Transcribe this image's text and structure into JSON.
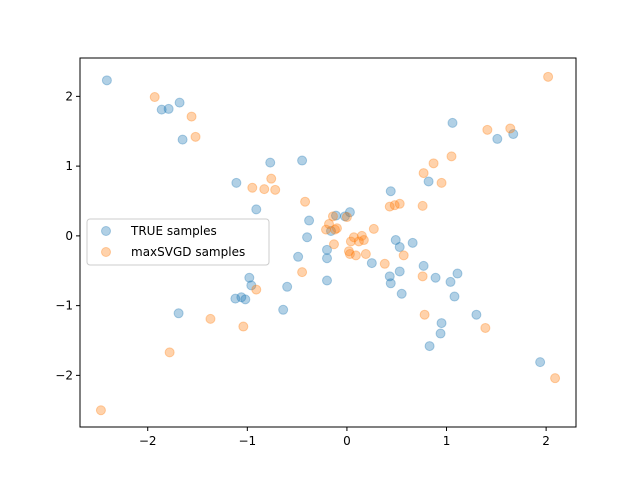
{
  "chart_data": {
    "type": "scatter",
    "title": "",
    "xlabel": "",
    "ylabel": "",
    "xlim": [
      -2.68,
      2.3
    ],
    "ylim": [
      -2.74,
      2.55
    ],
    "xticks": [
      -2,
      -1,
      0,
      1,
      2
    ],
    "yticks": [
      -2,
      -1,
      0,
      1,
      2
    ],
    "grid": false,
    "legend_position": "center-left",
    "series": [
      {
        "name": "TRUE samples",
        "color": "#1f77b4",
        "points": [
          [
            -2.41,
            2.23
          ],
          [
            -1.86,
            1.81
          ],
          [
            -1.79,
            1.82
          ],
          [
            -1.68,
            1.91
          ],
          [
            -1.65,
            1.38
          ],
          [
            -1.11,
            0.76
          ],
          [
            -0.77,
            1.05
          ],
          [
            -0.45,
            1.08
          ],
          [
            -0.91,
            0.38
          ],
          [
            -0.38,
            0.22
          ],
          [
            -0.4,
            -0.02
          ],
          [
            -0.49,
            -0.3
          ],
          [
            -0.6,
            -0.73
          ],
          [
            -0.64,
            -1.06
          ],
          [
            -0.2,
            -0.2
          ],
          [
            -0.2,
            -0.32
          ],
          [
            -0.16,
            0.07
          ],
          [
            -0.11,
            0.29
          ],
          [
            -0.02,
            0.28
          ],
          [
            0.03,
            0.34
          ],
          [
            -0.2,
            -0.64
          ],
          [
            -0.98,
            -0.6
          ],
          [
            -0.96,
            -0.71
          ],
          [
            -1.12,
            -0.9
          ],
          [
            -1.06,
            -0.88
          ],
          [
            -1.02,
            -0.91
          ],
          [
            -1.69,
            -1.11
          ],
          [
            0.25,
            -0.39
          ],
          [
            0.44,
            0.64
          ],
          [
            0.49,
            -0.06
          ],
          [
            0.53,
            -0.16
          ],
          [
            0.66,
            -0.1
          ],
          [
            0.43,
            -0.58
          ],
          [
            0.44,
            -0.68
          ],
          [
            0.53,
            -0.51
          ],
          [
            0.55,
            -0.83
          ],
          [
            0.77,
            -0.43
          ],
          [
            0.82,
            0.78
          ],
          [
            0.89,
            -0.6
          ],
          [
            0.95,
            -1.25
          ],
          [
            0.94,
            -1.4
          ],
          [
            0.83,
            -1.58
          ],
          [
            1.04,
            -0.66
          ],
          [
            1.06,
            1.62
          ],
          [
            1.08,
            -0.87
          ],
          [
            1.11,
            -0.54
          ],
          [
            1.3,
            -1.13
          ],
          [
            1.51,
            1.39
          ],
          [
            1.67,
            1.46
          ],
          [
            1.94,
            -1.81
          ]
        ]
      },
      {
        "name": "maxSVGD samples",
        "color": "#ff7f0e",
        "points": [
          [
            -1.93,
            1.99
          ],
          [
            -1.56,
            1.71
          ],
          [
            -1.52,
            1.42
          ],
          [
            -0.95,
            0.69
          ],
          [
            -0.83,
            0.67
          ],
          [
            -0.76,
            0.82
          ],
          [
            -0.72,
            0.66
          ],
          [
            -0.42,
            0.49
          ],
          [
            -0.45,
            -0.52
          ],
          [
            -0.91,
            -0.77
          ],
          [
            -1.37,
            -1.19
          ],
          [
            -1.04,
            -1.3
          ],
          [
            -1.78,
            -1.67
          ],
          [
            -2.47,
            -2.5
          ],
          [
            -0.21,
            0.09
          ],
          [
            -0.18,
            0.17
          ],
          [
            -0.14,
            0.28
          ],
          [
            -0.12,
            0.09
          ],
          [
            -0.13,
            -0.12
          ],
          [
            -0.1,
            0.11
          ],
          [
            0.0,
            0.27
          ],
          [
            0.02,
            -0.22
          ],
          [
            0.03,
            -0.26
          ],
          [
            0.04,
            -0.08
          ],
          [
            0.07,
            -0.02
          ],
          [
            0.09,
            -0.28
          ],
          [
            0.12,
            -0.08
          ],
          [
            0.15,
            0.0
          ],
          [
            0.17,
            -0.06
          ],
          [
            0.19,
            -0.26
          ],
          [
            0.27,
            0.1
          ],
          [
            0.38,
            -0.4
          ],
          [
            0.43,
            0.42
          ],
          [
            0.48,
            0.44
          ],
          [
            0.53,
            0.46
          ],
          [
            0.57,
            -0.28
          ],
          [
            0.76,
            0.43
          ],
          [
            0.76,
            -0.58
          ],
          [
            0.77,
            0.9
          ],
          [
            0.78,
            -1.13
          ],
          [
            0.87,
            1.04
          ],
          [
            0.95,
            0.76
          ],
          [
            1.05,
            1.14
          ],
          [
            1.41,
            1.52
          ],
          [
            1.39,
            -1.32
          ],
          [
            1.64,
            1.54
          ],
          [
            2.02,
            2.28
          ],
          [
            2.09,
            -2.04
          ]
        ]
      }
    ]
  }
}
